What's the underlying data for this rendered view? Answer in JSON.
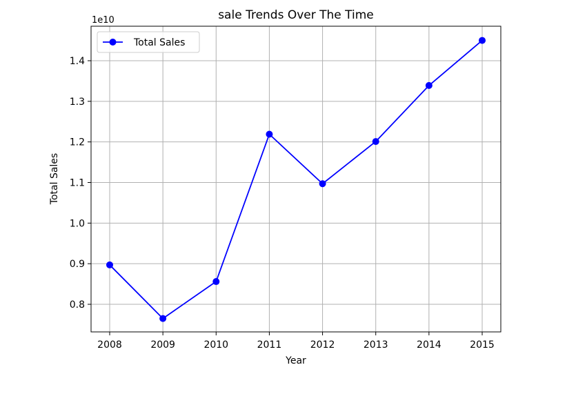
{
  "chart_data": {
    "type": "line",
    "title": "sale Trends Over The Time",
    "xlabel": "Year",
    "ylabel": "Total Sales",
    "y_offset_label": "1e10",
    "x": [
      2008,
      2009,
      2010,
      2011,
      2012,
      2013,
      2014,
      2015
    ],
    "x_tick_labels": [
      "2008",
      "2009",
      "2010",
      "2011",
      "2012",
      "2013",
      "2014",
      "2015"
    ],
    "y_ticks": [
      0.8,
      0.9,
      1.0,
      1.1,
      1.2,
      1.3,
      1.4
    ],
    "y_tick_labels": [
      "0.8",
      "0.9",
      "1.0",
      "1.1",
      "1.2",
      "1.3",
      "1.4"
    ],
    "xlim": [
      2007.65,
      2015.35
    ],
    "ylim": [
      0.732,
      1.485
    ],
    "grid": true,
    "legend_position": "top-left",
    "series": [
      {
        "name": "Total Sales",
        "color": "#0000ff",
        "marker": "circle",
        "values": [
          0.897,
          0.765,
          0.856,
          1.219,
          1.097,
          1.201,
          1.339,
          1.45
        ]
      }
    ]
  }
}
